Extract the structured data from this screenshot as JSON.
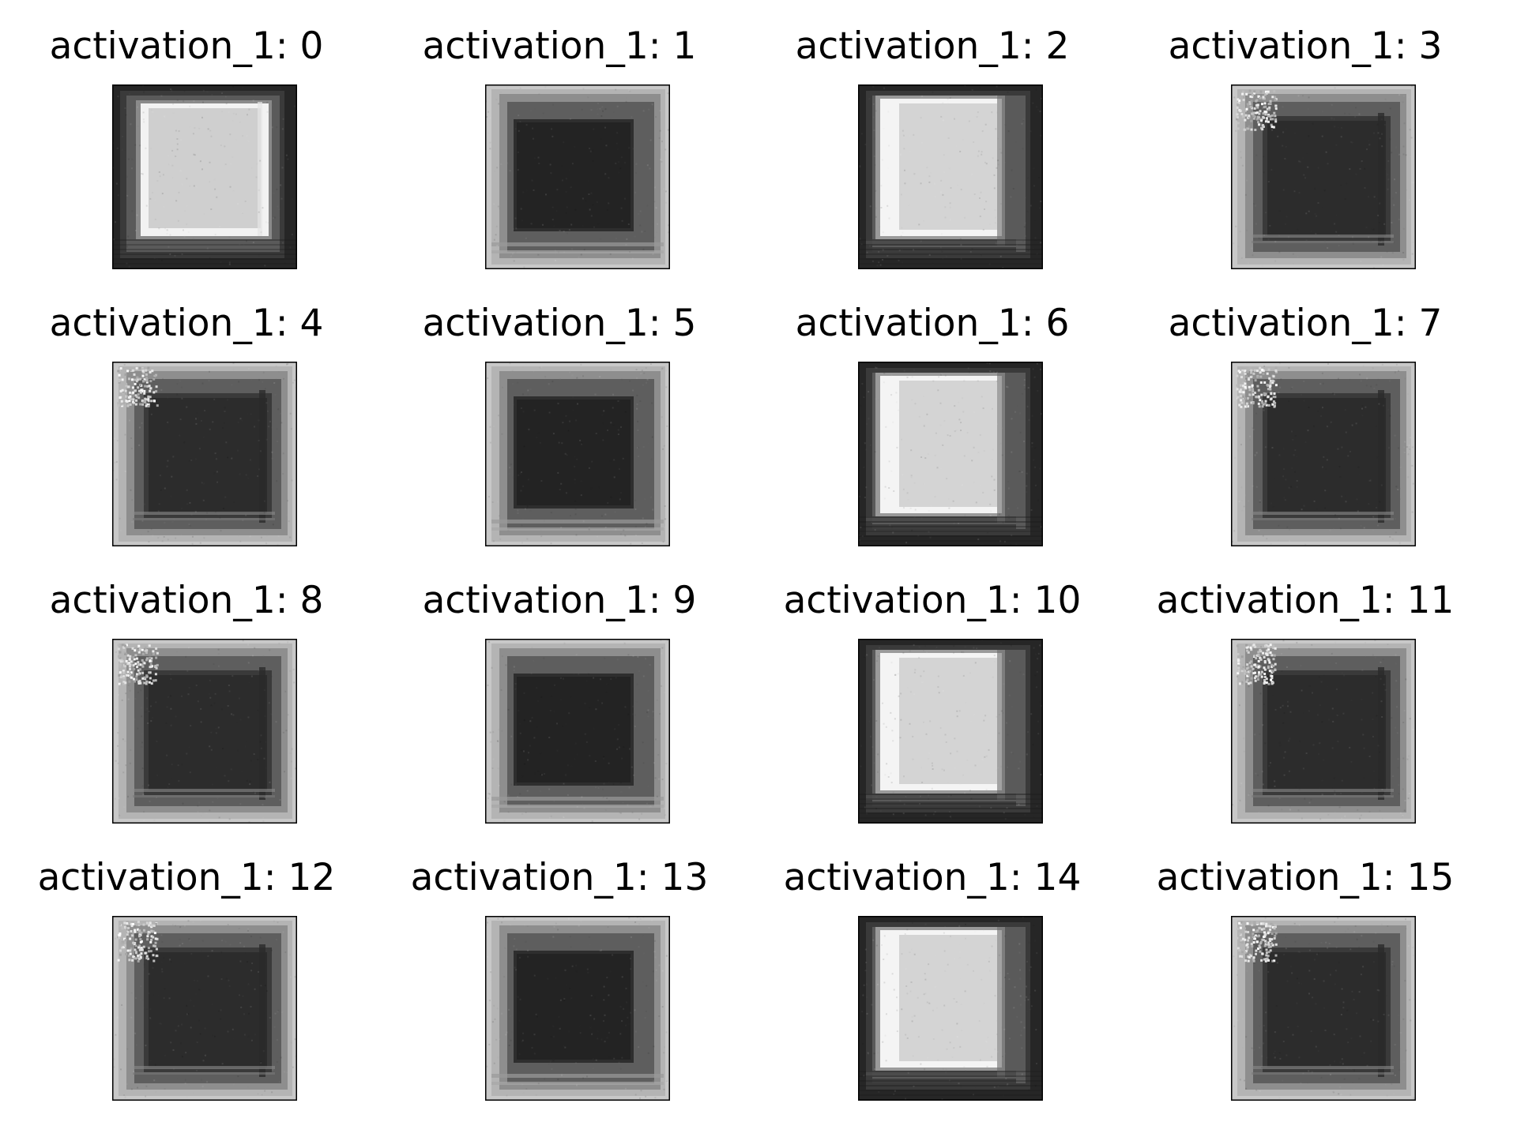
{
  "figure": {
    "panels": [
      {
        "title": "activation_1: 0",
        "polarity": "bright",
        "variant": 0
      },
      {
        "title": "activation_1: 1",
        "polarity": "dark",
        "variant": 1
      },
      {
        "title": "activation_1: 2",
        "polarity": "bright",
        "variant": 2
      },
      {
        "title": "activation_1: 3",
        "polarity": "dark",
        "variant": 3
      },
      {
        "title": "activation_1: 4",
        "polarity": "dark",
        "variant": 3
      },
      {
        "title": "activation_1: 5",
        "polarity": "dark",
        "variant": 1
      },
      {
        "title": "activation_1: 6",
        "polarity": "bright",
        "variant": 2
      },
      {
        "title": "activation_1: 7",
        "polarity": "dark",
        "variant": 3
      },
      {
        "title": "activation_1: 8",
        "polarity": "dark",
        "variant": 3
      },
      {
        "title": "activation_1: 9",
        "polarity": "dark",
        "variant": 1
      },
      {
        "title": "activation_1: 10",
        "polarity": "bright",
        "variant": 2
      },
      {
        "title": "activation_1: 11",
        "polarity": "dark",
        "variant": 3
      },
      {
        "title": "activation_1: 12",
        "polarity": "dark",
        "variant": 3
      },
      {
        "title": "activation_1: 13",
        "polarity": "dark",
        "variant": 1
      },
      {
        "title": "activation_1: 14",
        "polarity": "bright",
        "variant": 2
      },
      {
        "title": "activation_1: 15",
        "polarity": "dark",
        "variant": 3
      }
    ]
  }
}
